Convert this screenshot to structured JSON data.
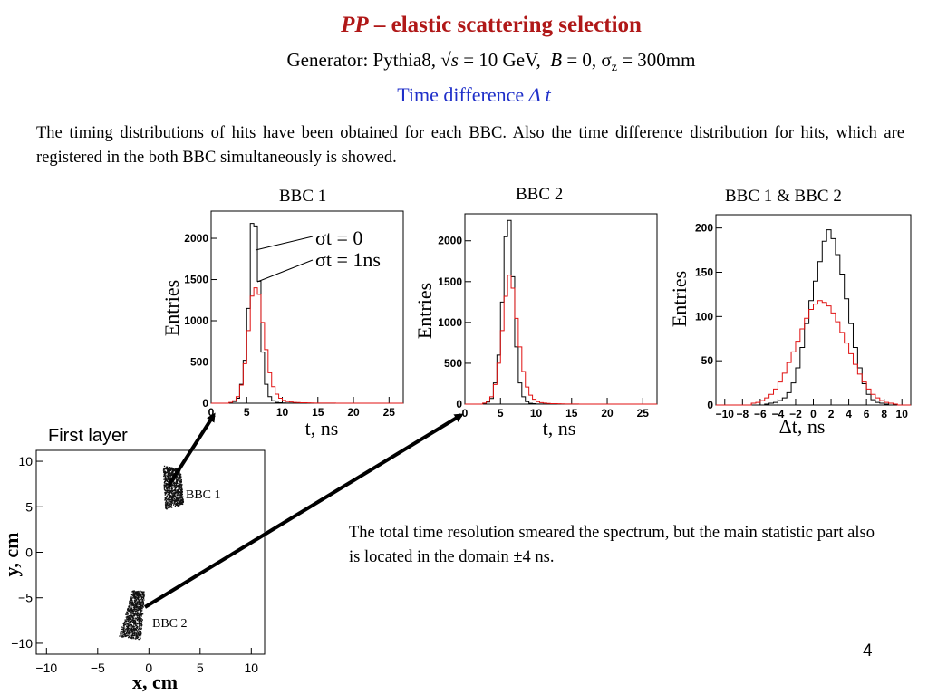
{
  "slide": {
    "title_italic": "PP",
    "title_rest": " – elastic scattering selection",
    "subtitle": {
      "generator_label": "Generator: Pythia8",
      "sqrt_s_label": "s",
      "sqrt_s_value": " = 10 GeV,",
      "b_label": "B",
      "b_value": " = 0,",
      "sigma_symbol": "σ",
      "sigma_sub": "z",
      "sigma_value": " = 300mm"
    },
    "section_label": "Time difference ",
    "section_symbol": "Δ t",
    "intro": "The timing distributions of hits have been obtained for each BBC. Also the time difference distribution for hits, which are registered in the both BBC simultaneously is showed.",
    "summary": "The total time resolution smeared the spectrum, but the main statistic part also is located in the domain ±4 ns.",
    "slide_number": "4",
    "first_layer_label": "First layer"
  },
  "colors": {
    "title": "#b01818",
    "section": "#1f2fc9",
    "smeared": "#e01010",
    "unsmeared": "#000000"
  },
  "chart_data": [
    {
      "type": "bar",
      "title": "BBC 1",
      "xlabel": "t,  ns",
      "ylabel": "Entries",
      "xlim": [
        0,
        27
      ],
      "ylim": [
        0,
        2330
      ],
      "xticks": [
        0,
        5,
        10,
        15,
        20,
        25
      ],
      "yticks": [
        0,
        500,
        1000,
        1500,
        2000
      ],
      "annotations": [
        "σt = 0",
        "σt = 1ns"
      ],
      "x_start": 0,
      "bin_width": 0.5,
      "series": [
        {
          "name": "σt = 0",
          "color": "#000000",
          "values": [
            0,
            0,
            0,
            0,
            0,
            5,
            20,
            60,
            230,
            520,
            1150,
            2180,
            2150,
            1480,
            620,
            230,
            80,
            30,
            10,
            5,
            3,
            2,
            1,
            0,
            0,
            0,
            0,
            0,
            0,
            0,
            0,
            0,
            0,
            0,
            0,
            0,
            0,
            0,
            0,
            0,
            0,
            0,
            0,
            0,
            0,
            0,
            0,
            0,
            0,
            0,
            0,
            0,
            0,
            0
          ]
        },
        {
          "name": "σt = 1ns",
          "color": "#e01010",
          "values": [
            0,
            0,
            0,
            0,
            0,
            10,
            30,
            80,
            220,
            480,
            880,
            1300,
            1400,
            1320,
            980,
            650,
            370,
            200,
            110,
            60,
            35,
            20,
            15,
            10,
            8,
            6,
            5,
            4,
            3,
            2,
            2,
            1,
            1,
            1,
            1,
            0,
            0,
            0,
            0,
            0,
            0,
            0,
            0,
            0,
            0,
            0,
            0,
            0,
            0,
            0,
            0,
            0,
            0,
            0
          ]
        }
      ]
    },
    {
      "type": "bar",
      "title": "BBC 2",
      "xlabel": "t,  ns",
      "ylabel": "Entries",
      "xlim": [
        0,
        27
      ],
      "ylim": [
        0,
        2330
      ],
      "xticks": [
        0,
        5,
        10,
        15,
        20,
        25
      ],
      "yticks": [
        0,
        500,
        1000,
        1500,
        2000
      ],
      "x_start": 0,
      "bin_width": 0.5,
      "series": [
        {
          "name": "σt = 0",
          "color": "#000000",
          "values": [
            0,
            0,
            0,
            0,
            0,
            5,
            25,
            70,
            260,
            600,
            1250,
            2050,
            2250,
            1560,
            700,
            260,
            90,
            30,
            10,
            5,
            2,
            1,
            0,
            0,
            0,
            0,
            0,
            0,
            0,
            0,
            0,
            0,
            0,
            0,
            0,
            0,
            0,
            0,
            0,
            0,
            0,
            0,
            0,
            0,
            0,
            0,
            0,
            0,
            0,
            0,
            0,
            0,
            0,
            0
          ]
        },
        {
          "name": "σt = 1ns",
          "color": "#e01010",
          "values": [
            0,
            0,
            0,
            0,
            0,
            12,
            35,
            90,
            240,
            500,
            900,
            1320,
            1580,
            1420,
            1050,
            700,
            400,
            210,
            110,
            60,
            30,
            18,
            12,
            8,
            6,
            5,
            4,
            3,
            2,
            1,
            1,
            1,
            0,
            0,
            0,
            0,
            0,
            0,
            0,
            0,
            0,
            0,
            0,
            0,
            0,
            0,
            0,
            0,
            0,
            0,
            0,
            0,
            0,
            0
          ]
        }
      ]
    },
    {
      "type": "bar",
      "title": "BBC 1 & BBC 2",
      "xlabel": "Δt,  ns",
      "ylabel": "Entries",
      "xlim": [
        -11,
        11
      ],
      "ylim": [
        0,
        215
      ],
      "xticks": [
        -10,
        -8,
        -6,
        -4,
        -2,
        0,
        2,
        4,
        6,
        8,
        10
      ],
      "xtick_labels": [
        "−10",
        "−8",
        "−6",
        "−4",
        "−2",
        "0",
        "2",
        "4",
        "6",
        "8",
        "10"
      ],
      "yticks": [
        0,
        50,
        100,
        150,
        200
      ],
      "x_start": -11,
      "bin_width": 0.5,
      "series": [
        {
          "name": "σt = 0",
          "color": "#000000",
          "values": [
            0,
            0,
            0,
            0,
            0,
            0,
            0,
            0,
            0,
            0,
            0,
            1,
            2,
            3,
            5,
            8,
            14,
            25,
            42,
            65,
            92,
            118,
            140,
            162,
            185,
            198,
            188,
            170,
            148,
            120,
            92,
            65,
            42,
            24,
            12,
            6,
            3,
            2,
            1,
            0,
            0,
            0,
            0,
            0
          ]
        },
        {
          "name": "σt = 1ns",
          "color": "#e01010",
          "values": [
            0,
            0,
            0,
            0,
            0,
            0,
            0,
            0,
            2,
            3,
            5,
            8,
            12,
            18,
            26,
            36,
            48,
            60,
            72,
            86,
            98,
            108,
            114,
            118,
            116,
            112,
            104,
            94,
            82,
            70,
            58,
            46,
            35,
            26,
            18,
            12,
            8,
            5,
            3,
            2,
            1,
            0,
            0,
            0
          ]
        }
      ]
    }
  ],
  "scatter": {
    "type": "scatter",
    "xlabel": "x,  cm",
    "ylabel": "y,  cm",
    "xlim": [
      -11,
      11.3
    ],
    "ylim": [
      -11.2,
      11.2
    ],
    "xticks": [
      -10,
      -5,
      0,
      5,
      10
    ],
    "xtick_labels": [
      "−10",
      "−5",
      "0",
      "5",
      "10"
    ],
    "yticks": [
      -10,
      -5,
      0,
      5,
      10
    ],
    "ytick_labels": [
      "−10",
      "−5",
      "0",
      "5",
      "10"
    ],
    "regions": [
      {
        "label": "BBC 1",
        "corners": [
          [
            1.4,
            9.5
          ],
          [
            3.1,
            9.1
          ],
          [
            3.4,
            5.3
          ],
          [
            1.6,
            4.7
          ]
        ]
      },
      {
        "label": "BBC 2",
        "corners": [
          [
            -1.6,
            -4.2
          ],
          [
            -0.4,
            -4.3
          ],
          [
            -0.8,
            -9.6
          ],
          [
            -2.9,
            -9.3
          ]
        ]
      }
    ]
  }
}
